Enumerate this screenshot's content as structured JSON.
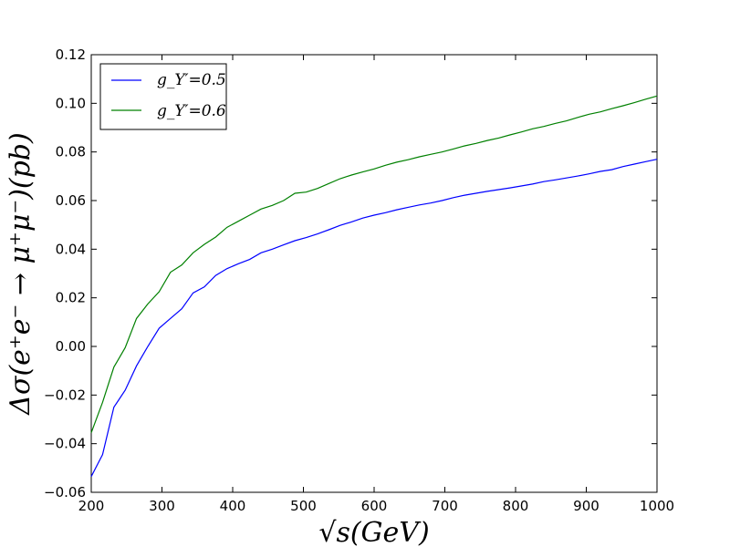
{
  "chart_data": {
    "type": "line",
    "title": "",
    "xlabel": "√s(GeV)",
    "ylabel": "Δσ(e⁺e⁻ → μ⁺μ⁻)(pb)",
    "xlim": [
      200,
      1000
    ],
    "ylim": [
      -0.06,
      0.12
    ],
    "xticks": [
      200,
      300,
      400,
      500,
      600,
      700,
      800,
      900,
      1000
    ],
    "xtick_labels": [
      "200",
      "300",
      "400",
      "500",
      "600",
      "700",
      "800",
      "900",
      "1000"
    ],
    "yticks": [
      -0.06,
      -0.04,
      -0.02,
      0.0,
      0.02,
      0.04,
      0.06,
      0.08,
      0.1,
      0.12
    ],
    "ytick_labels": [
      "−0.06",
      "−0.04",
      "−0.02",
      "0.00",
      "0.02",
      "0.04",
      "0.06",
      "0.08",
      "0.10",
      "0.12"
    ],
    "grid": false,
    "legend_position": "top-left",
    "series": [
      {
        "name": "g_Y′=0.5",
        "color": "#0000ff",
        "x": [
          200,
          216,
          232,
          248,
          264,
          280,
          296,
          312,
          328,
          344,
          360,
          376,
          392,
          408,
          424,
          440,
          456,
          472,
          488,
          504,
          520,
          536,
          552,
          568,
          584,
          600,
          616,
          632,
          648,
          664,
          680,
          696,
          712,
          728,
          744,
          760,
          776,
          792,
          808,
          824,
          840,
          856,
          872,
          888,
          904,
          920,
          936,
          952,
          968,
          984,
          1000
        ],
        "y": [
          -0.0535,
          -0.0445,
          -0.025,
          -0.018,
          -0.008,
          0.0,
          0.0075,
          0.0115,
          0.0155,
          0.022,
          0.0245,
          0.0292,
          0.032,
          0.034,
          0.0358,
          0.0385,
          0.04,
          0.0418,
          0.0435,
          0.0448,
          0.0463,
          0.048,
          0.0498,
          0.0512,
          0.0528,
          0.054,
          0.055,
          0.0562,
          0.0572,
          0.0582,
          0.059,
          0.06,
          0.0612,
          0.0622,
          0.063,
          0.0638,
          0.0645,
          0.0652,
          0.066,
          0.0668,
          0.0678,
          0.0685,
          0.0693,
          0.0701,
          0.071,
          0.072,
          0.0727,
          0.074,
          0.075,
          0.076,
          0.077
        ]
      },
      {
        "name": "g_Y′=0.6",
        "color": "#008000",
        "x": [
          200,
          216,
          232,
          248,
          264,
          280,
          296,
          312,
          328,
          344,
          360,
          376,
          392,
          408,
          424,
          440,
          456,
          472,
          488,
          504,
          520,
          536,
          552,
          568,
          584,
          600,
          616,
          632,
          648,
          664,
          680,
          696,
          712,
          728,
          744,
          760,
          776,
          792,
          808,
          824,
          840,
          856,
          872,
          888,
          904,
          920,
          936,
          952,
          968,
          984,
          1000
        ],
        "y": [
          -0.0355,
          -0.023,
          -0.0085,
          -0.0005,
          0.0115,
          0.0175,
          0.0225,
          0.0305,
          0.0335,
          0.0385,
          0.042,
          0.045,
          0.049,
          0.0515,
          0.054,
          0.0565,
          0.058,
          0.06,
          0.063,
          0.0635,
          0.065,
          0.067,
          0.069,
          0.0705,
          0.0718,
          0.073,
          0.0745,
          0.0758,
          0.0768,
          0.078,
          0.079,
          0.08,
          0.0812,
          0.0825,
          0.0835,
          0.0847,
          0.0857,
          0.087,
          0.0882,
          0.0895,
          0.0905,
          0.0917,
          0.0928,
          0.0942,
          0.0955,
          0.0965,
          0.0978,
          0.099,
          0.1003,
          0.1017,
          0.103
        ]
      }
    ]
  }
}
